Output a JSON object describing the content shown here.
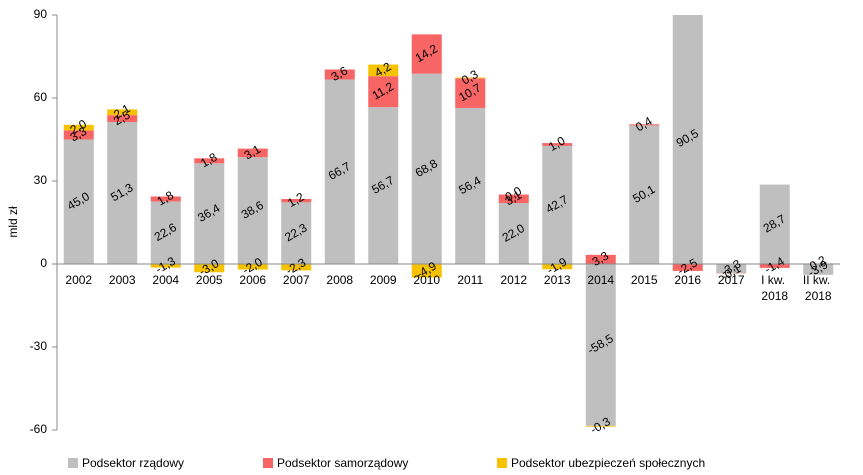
{
  "chart_data": {
    "type": "bar",
    "stacked": true,
    "y_label": "mld zł",
    "categories": [
      "2002",
      "2003",
      "2004",
      "2005",
      "2006",
      "2007",
      "2008",
      "2009",
      "2010",
      "2011",
      "2012",
      "2013",
      "2014",
      "2015",
      "2016",
      "2017",
      "I kw. 2018",
      "II kw. 2018"
    ],
    "series": [
      {
        "name": "Podsektor rządowy",
        "color": "#bfbfbf",
        "values": [
          45.0,
          51.3,
          22.6,
          36.4,
          38.6,
          22.3,
          66.7,
          56.7,
          68.8,
          56.4,
          22.0,
          42.7,
          -58.5,
          50.1,
          90.5,
          -3.3,
          28.7,
          -3.9
        ],
        "value_labels": [
          "45,0",
          "51,3",
          "22,6",
          "36,4",
          "38,6",
          "22,3",
          "66,7",
          "56,7",
          "68,8",
          "56,4",
          "22,0",
          "42,7",
          "-58,5",
          "50,1",
          "90,5",
          "-3,3",
          "28,7",
          "-3,9"
        ]
      },
      {
        "name": "Podsektor samorządowy",
        "color": "#f76565",
        "values": [
          3.3,
          2.5,
          1.8,
          1.8,
          3.1,
          1.2,
          3.6,
          11.2,
          14.2,
          10.7,
          3.1,
          1.0,
          3.3,
          0.4,
          -2.5,
          -0.1,
          -1.4,
          0.2
        ],
        "value_labels": [
          "3,3",
          "2,5",
          "1,8",
          "1,8",
          "3,1",
          "1,2",
          "3,6",
          "11,2",
          "14,2",
          "10,7",
          "3,1",
          "1,0",
          "3,3",
          "0,4",
          "-2,5",
          "-0,1",
          "-1,4",
          "0,2"
        ]
      },
      {
        "name": "Podsektor ubezpieczeń społecznych",
        "color": "#f7c300",
        "values": [
          2.0,
          2.1,
          -1.3,
          -3.0,
          -2.0,
          -2.3,
          null,
          4.2,
          -4.9,
          0.3,
          0.0,
          -1.9,
          -0.3,
          null,
          null,
          null,
          null,
          null
        ],
        "value_labels": [
          "2,0",
          "2,1",
          "-1,3",
          "-3,0",
          "-2,0",
          "-2,3",
          null,
          "4,2",
          "-4,9",
          "0,3",
          "0,0",
          "-1,9",
          "-0,3",
          null,
          null,
          null,
          null,
          null
        ]
      }
    ],
    "ylim": [
      -60,
      90
    ],
    "yticks": [
      -60,
      -30,
      0,
      30,
      60,
      90
    ],
    "legend": "bottom"
  }
}
